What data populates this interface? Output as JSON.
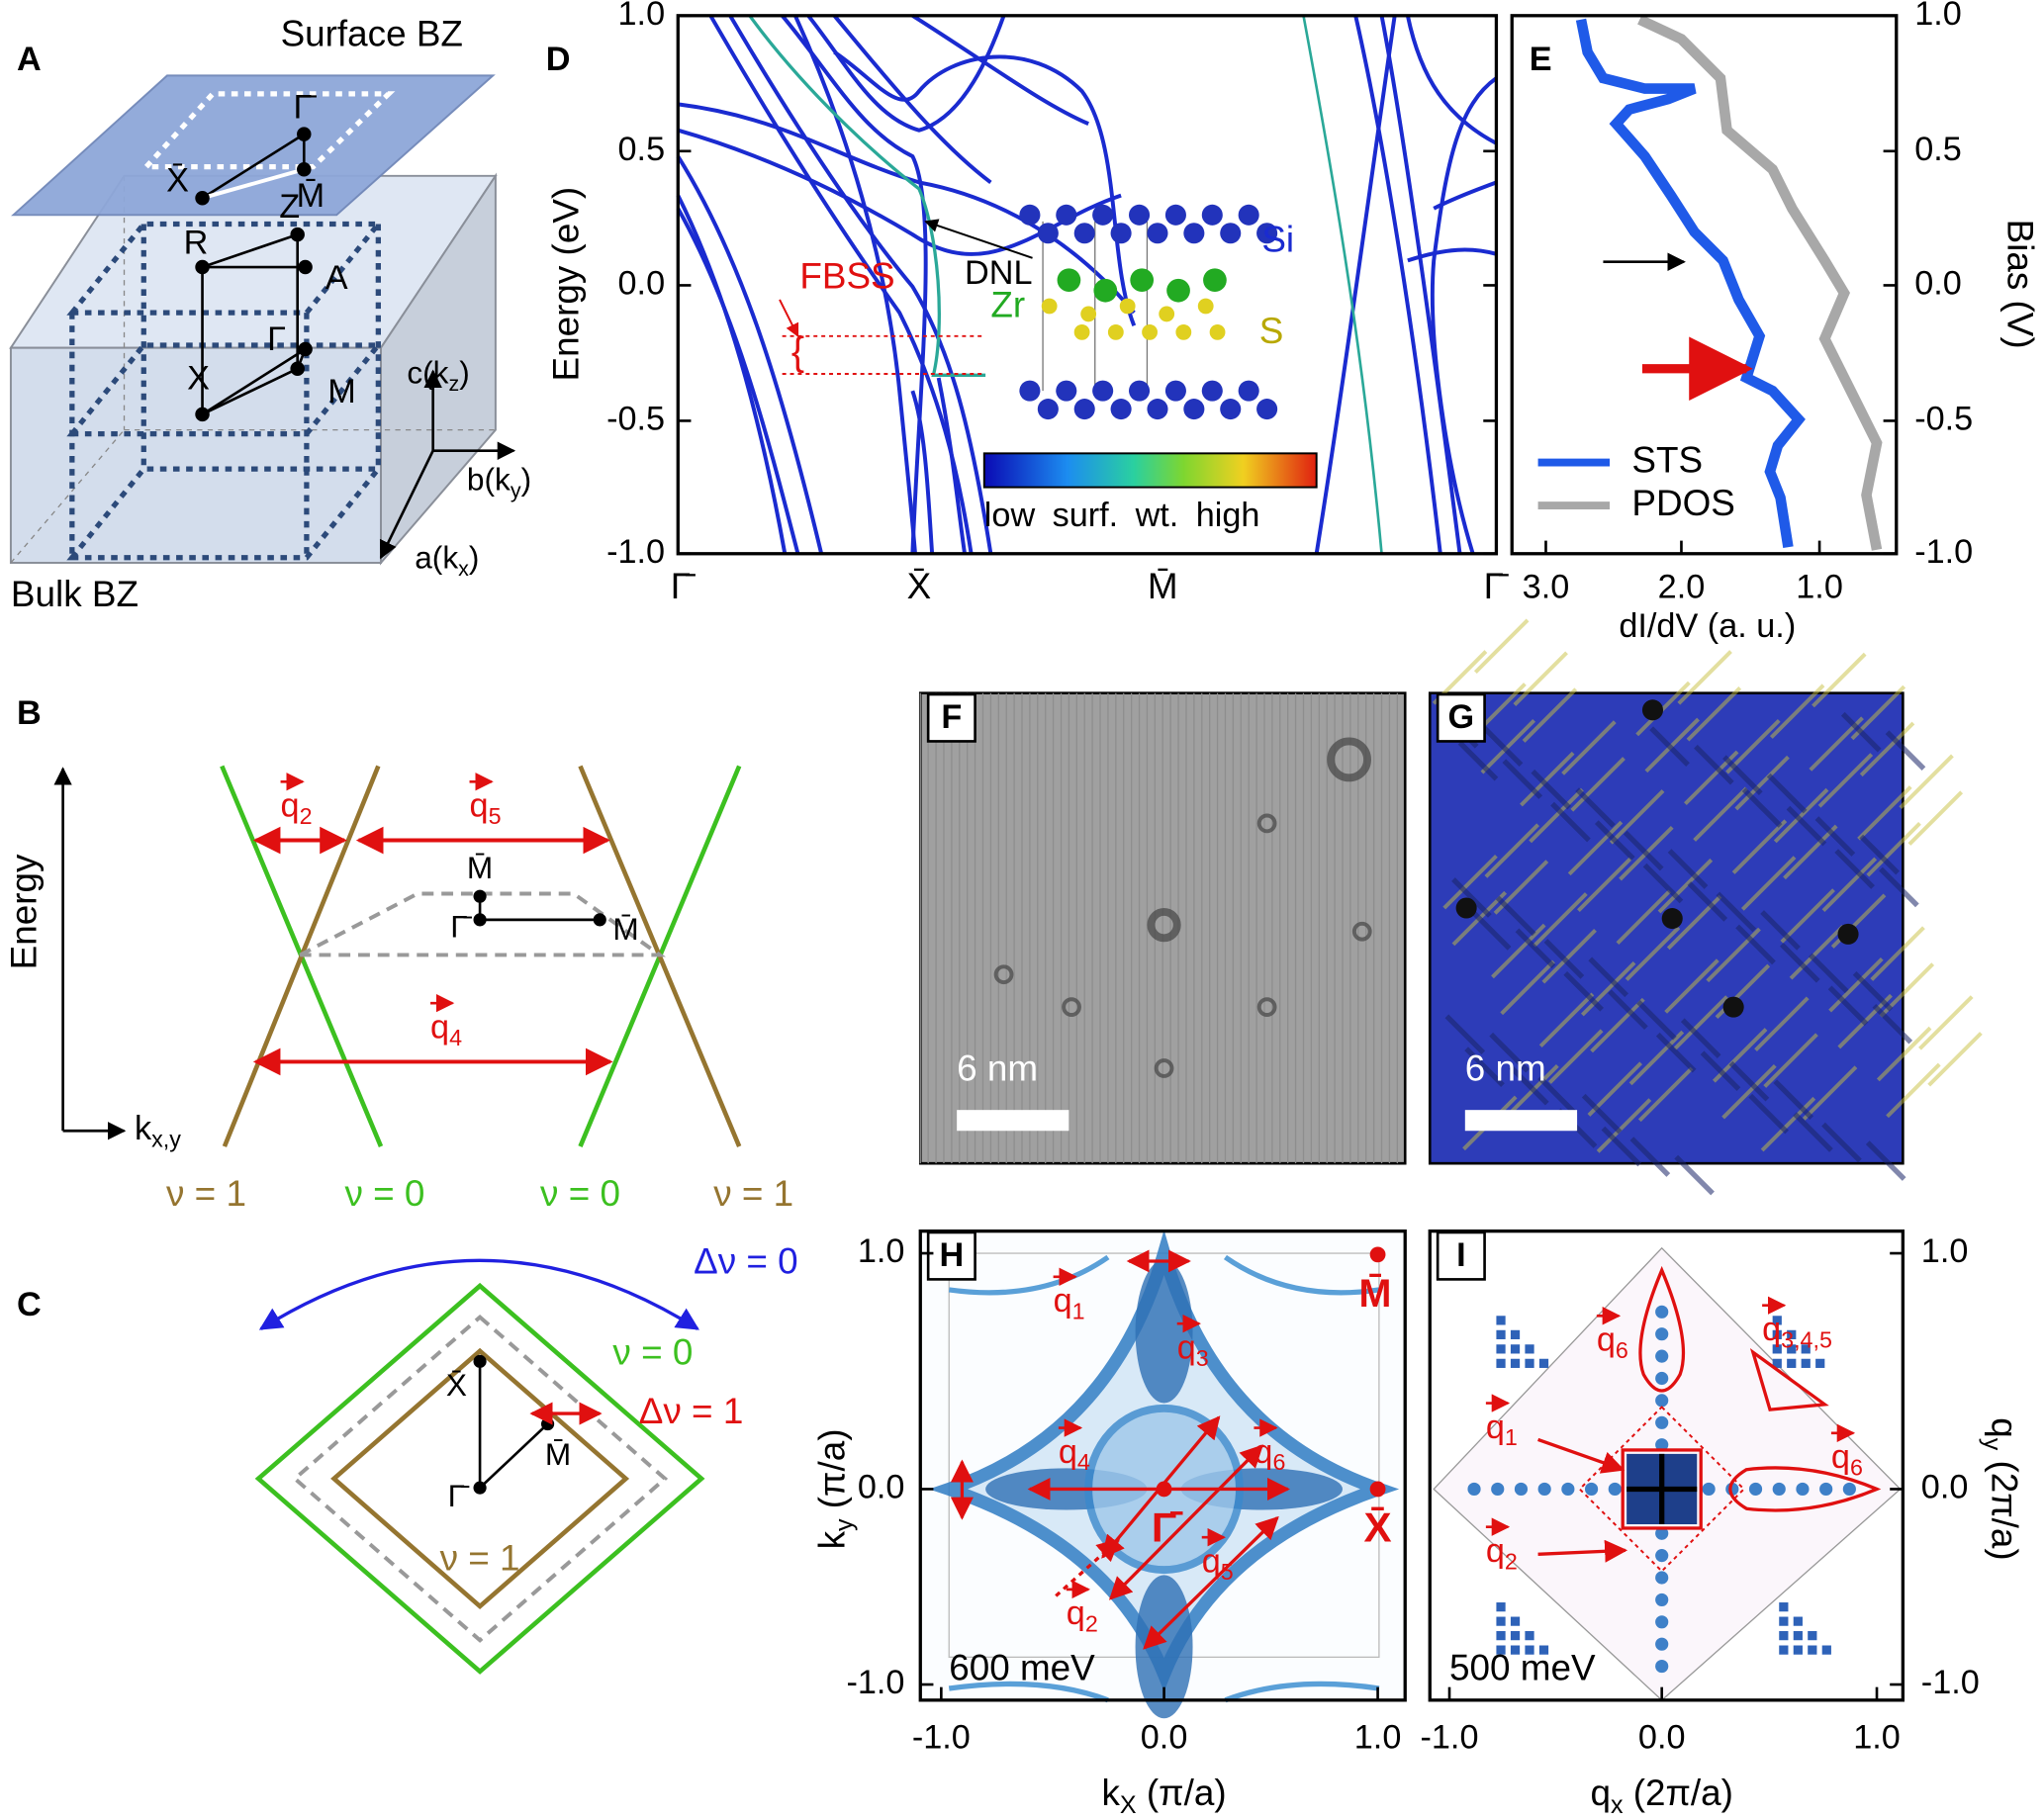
{
  "A": {
    "panel": "A",
    "surface": "Surface BZ",
    "bulk": "Bulk BZ",
    "points": {
      "Gs": "Γ̄",
      "Xs": "X̄",
      "Ms": "M̄",
      "R": "R",
      "Z": "Z",
      "A": "A",
      "G": "Γ",
      "X": "X",
      "M": "M"
    },
    "axes": [
      {
        "t": "c(k",
        "s": "z",
        "e": ")"
      },
      {
        "t": "b(k",
        "s": "y",
        "e": ")"
      },
      {
        "t": "a(k",
        "s": "x",
        "e": ")"
      }
    ]
  },
  "B": {
    "panel": "B",
    "ylabel": "Energy",
    "xlabel": {
      "t": "k",
      "s": "x,y"
    },
    "q": [
      {
        "t": "q",
        "s": "2"
      },
      {
        "t": "q",
        "s": "5"
      },
      {
        "t": "q",
        "s": "4"
      }
    ],
    "points": [
      "M̄",
      "Γ̄",
      "M̄"
    ],
    "nu": [
      "ν = 1",
      "ν = 0",
      "ν = 0",
      "ν = 1"
    ]
  },
  "C": {
    "panel": "C",
    "labels": [
      "Δν = 0",
      "ν = 0",
      "Δν = 1",
      "ν = 1"
    ],
    "points": [
      "X̄",
      "M̄",
      "Γ̄"
    ]
  },
  "D": {
    "panel": "D",
    "ylabel": "Energy (eV)",
    "yticks": [
      "1.0",
      "0.5",
      "0.0",
      "-0.5",
      "-1.0"
    ],
    "xticks": [
      "Γ̄",
      "X̄",
      "M̄",
      "Γ̄"
    ],
    "annotations": [
      "FBSS",
      "DNL"
    ],
    "atoms": [
      "Si",
      "Zr",
      "S"
    ],
    "colorbar": "low  surf. wt.  high"
  },
  "E": {
    "panel": "E",
    "ylabel": "Bias (V)",
    "xlabel": "dI/dV (a. u.)",
    "xticks": [
      "3.0",
      "2.0",
      "1.0"
    ],
    "yticks": [
      "1.0",
      "0.5",
      "0.0",
      "-0.5",
      "-1.0"
    ],
    "legend": [
      "STS",
      "PDOS"
    ]
  },
  "F": {
    "panel": "F",
    "scale": "6 nm"
  },
  "G": {
    "panel": "G",
    "scale": "6 nm"
  },
  "H": {
    "panel": "H",
    "xlabel": {
      "t": "k",
      "s": "X",
      "e": " (π/a)"
    },
    "ylabel": {
      "t": "k",
      "s": "y",
      "e": " (π/a)"
    },
    "xticks": [
      "-1.0",
      "0.0",
      "1.0"
    ],
    "yticks": [
      "1.0",
      "0.0",
      "-1.0"
    ],
    "energy": "600 meV",
    "q": [
      {
        "t": "q",
        "s": "1"
      },
      {
        "t": "q",
        "s": "2"
      },
      {
        "t": "q",
        "s": "3"
      },
      {
        "t": "q",
        "s": "4"
      },
      {
        "t": "q",
        "s": "5"
      },
      {
        "t": "q",
        "s": "6"
      }
    ],
    "points": [
      "M̄",
      "X̄",
      "Γ̄"
    ]
  },
  "I": {
    "panel": "I",
    "xlabel": {
      "t": "q",
      "s": "x",
      "e": " (2π/a)"
    },
    "ylabel": {
      "t": "q",
      "s": "y",
      "e": " (2π/a)"
    },
    "xticks": [
      "-1.0",
      "0.0",
      "1.0"
    ],
    "yticks": [
      "1.0",
      "0.0",
      "-1.0"
    ],
    "energy": "500 meV",
    "q": [
      {
        "t": "q",
        "s": "6"
      },
      {
        "t": "q",
        "s": "3,4,5"
      },
      {
        "t": "q",
        "s": "1"
      },
      {
        "t": "q",
        "s": "6"
      },
      {
        "t": "q",
        "s": "2"
      }
    ]
  }
}
